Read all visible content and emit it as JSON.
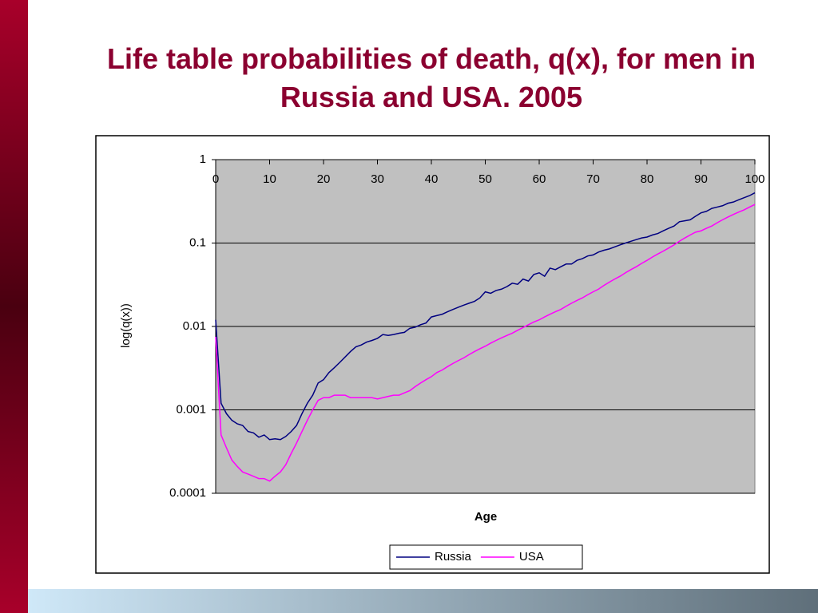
{
  "chart_data": {
    "type": "line",
    "title": "Life table probabilities of death, q(x), for men in Russia and USA. 2005",
    "x_label": "Age",
    "y_label": "log(q(x))",
    "log_y": true,
    "grid": true,
    "legend": "bottom",
    "xlim": [
      0,
      100
    ],
    "xticks": [
      0,
      10,
      20,
      30,
      40,
      50,
      60,
      70,
      80,
      90,
      100
    ],
    "ylim": [
      0.0001,
      1
    ],
    "yticks": [
      0.0001,
      0.001,
      0.01,
      0.1,
      1
    ],
    "x": [
      0,
      1,
      2,
      3,
      4,
      5,
      6,
      7,
      8,
      9,
      10,
      11,
      12,
      13,
      14,
      15,
      16,
      17,
      18,
      19,
      20,
      21,
      22,
      23,
      24,
      25,
      26,
      27,
      28,
      29,
      30,
      31,
      32,
      33,
      34,
      35,
      36,
      37,
      38,
      39,
      40,
      41,
      42,
      43,
      44,
      45,
      46,
      47,
      48,
      49,
      50,
      51,
      52,
      53,
      54,
      55,
      56,
      57,
      58,
      59,
      60,
      61,
      62,
      63,
      64,
      65,
      66,
      67,
      68,
      69,
      70,
      71,
      72,
      73,
      74,
      75,
      76,
      77,
      78,
      79,
      80,
      81,
      82,
      83,
      84,
      85,
      86,
      87,
      88,
      89,
      90,
      91,
      92,
      93,
      94,
      95,
      96,
      97,
      98,
      99,
      100
    ],
    "series": [
      {
        "name": "Russia",
        "color": "#000080",
        "values": [
          0.012,
          0.0012,
          0.0009,
          0.00075,
          0.00068,
          0.00065,
          0.00055,
          0.00053,
          0.00047,
          0.0005,
          0.00044,
          0.00045,
          0.00044,
          0.00048,
          0.00055,
          0.00065,
          0.0009,
          0.0012,
          0.0015,
          0.0021,
          0.0023,
          0.0028,
          0.0032,
          0.0037,
          0.0043,
          0.005,
          0.0057,
          0.006,
          0.0065,
          0.0068,
          0.0072,
          0.008,
          0.0078,
          0.008,
          0.0083,
          0.0085,
          0.0095,
          0.0098,
          0.0105,
          0.011,
          0.013,
          0.0135,
          0.014,
          0.015,
          0.016,
          0.017,
          0.018,
          0.019,
          0.02,
          0.022,
          0.026,
          0.025,
          0.027,
          0.028,
          0.03,
          0.033,
          0.032,
          0.037,
          0.035,
          0.042,
          0.044,
          0.04,
          0.05,
          0.048,
          0.052,
          0.056,
          0.056,
          0.062,
          0.065,
          0.07,
          0.072,
          0.078,
          0.082,
          0.085,
          0.09,
          0.095,
          0.1,
          0.105,
          0.11,
          0.115,
          0.118,
          0.125,
          0.13,
          0.14,
          0.15,
          0.16,
          0.18,
          0.185,
          0.19,
          0.21,
          0.23,
          0.24,
          0.26,
          0.27,
          0.28,
          0.3,
          0.31,
          0.33,
          0.35,
          0.37,
          0.4
        ]
      },
      {
        "name": "USA",
        "color": "#ff00ff",
        "values": [
          0.0075,
          0.0005,
          0.00035,
          0.00025,
          0.00021,
          0.00018,
          0.00017,
          0.00016,
          0.00015,
          0.00015,
          0.00014,
          0.00016,
          0.00018,
          0.00022,
          0.0003,
          0.0004,
          0.00055,
          0.00075,
          0.001,
          0.0013,
          0.0014,
          0.0014,
          0.0015,
          0.0015,
          0.0015,
          0.0014,
          0.0014,
          0.0014,
          0.0014,
          0.0014,
          0.00135,
          0.0014,
          0.00145,
          0.0015,
          0.0015,
          0.0016,
          0.0017,
          0.0019,
          0.0021,
          0.0023,
          0.0025,
          0.0028,
          0.003,
          0.0033,
          0.0036,
          0.0039,
          0.0042,
          0.0046,
          0.005,
          0.0054,
          0.0058,
          0.0063,
          0.0068,
          0.0073,
          0.0078,
          0.0083,
          0.009,
          0.0097,
          0.0105,
          0.0113,
          0.012,
          0.013,
          0.014,
          0.015,
          0.016,
          0.0175,
          0.019,
          0.0205,
          0.022,
          0.024,
          0.026,
          0.028,
          0.031,
          0.034,
          0.037,
          0.04,
          0.044,
          0.048,
          0.052,
          0.057,
          0.062,
          0.068,
          0.074,
          0.08,
          0.087,
          0.095,
          0.105,
          0.115,
          0.125,
          0.135,
          0.14,
          0.15,
          0.16,
          0.175,
          0.19,
          0.205,
          0.22,
          0.235,
          0.25,
          0.27,
          0.29
        ]
      }
    ]
  }
}
